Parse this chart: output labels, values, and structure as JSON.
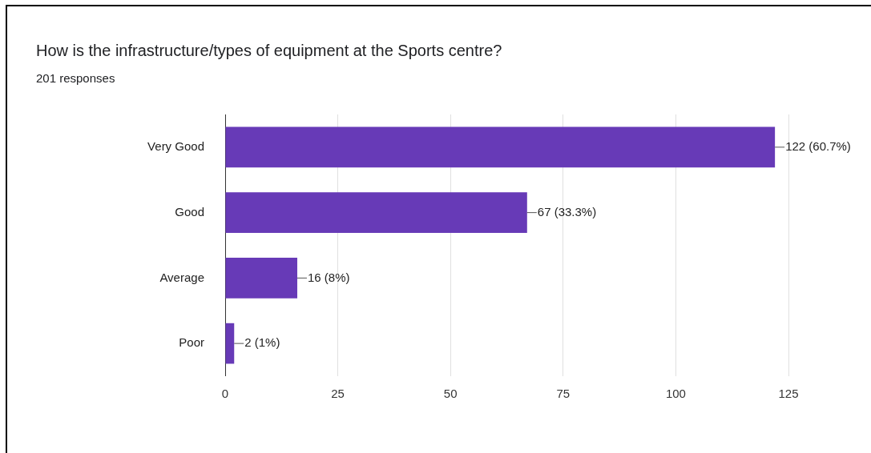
{
  "chart_data": {
    "type": "bar",
    "orientation": "horizontal",
    "title": "How is the infrastructure/types of equipment at the  Sports centre?",
    "subtitle": "201 responses",
    "categories": [
      "Very Good",
      "Good",
      "Average",
      "Poor"
    ],
    "values": [
      122,
      67,
      16,
      2
    ],
    "value_labels": [
      "122 (60.7%)",
      "67 (33.3%)",
      "16 (8%)",
      "2 (1%)"
    ],
    "color": "#673ab7",
    "xlim": [
      0,
      125
    ],
    "xticks": [
      0,
      25,
      50,
      75,
      100,
      125
    ],
    "grid": "x",
    "legend": false
  }
}
